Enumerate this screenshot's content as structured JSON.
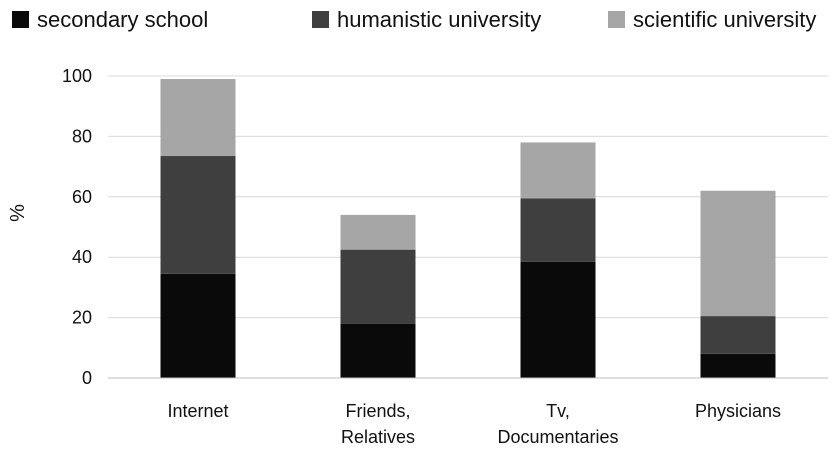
{
  "chart_data": {
    "type": "bar",
    "stacked": true,
    "categories": [
      [
        "Internet"
      ],
      [
        "Friends,",
        "Relatives"
      ],
      [
        "Tv,",
        "Documentaries"
      ],
      [
        "Physicians"
      ]
    ],
    "series": [
      {
        "name": "secondary school",
        "color": "#0a0a0a",
        "values": [
          34.5,
          18,
          38.5,
          8
        ]
      },
      {
        "name": "humanistic university",
        "color": "#3f3f3f",
        "values": [
          39,
          24.5,
          21,
          12.5
        ]
      },
      {
        "name": "scientific university",
        "color": "#a6a6a6",
        "values": [
          25.5,
          11.5,
          18.5,
          41.5
        ]
      }
    ],
    "ylabel": "%",
    "ylim": [
      0,
      100
    ],
    "yticks": [
      0,
      20,
      40,
      60,
      80,
      100
    ],
    "grid": true,
    "legend_position": "top"
  }
}
